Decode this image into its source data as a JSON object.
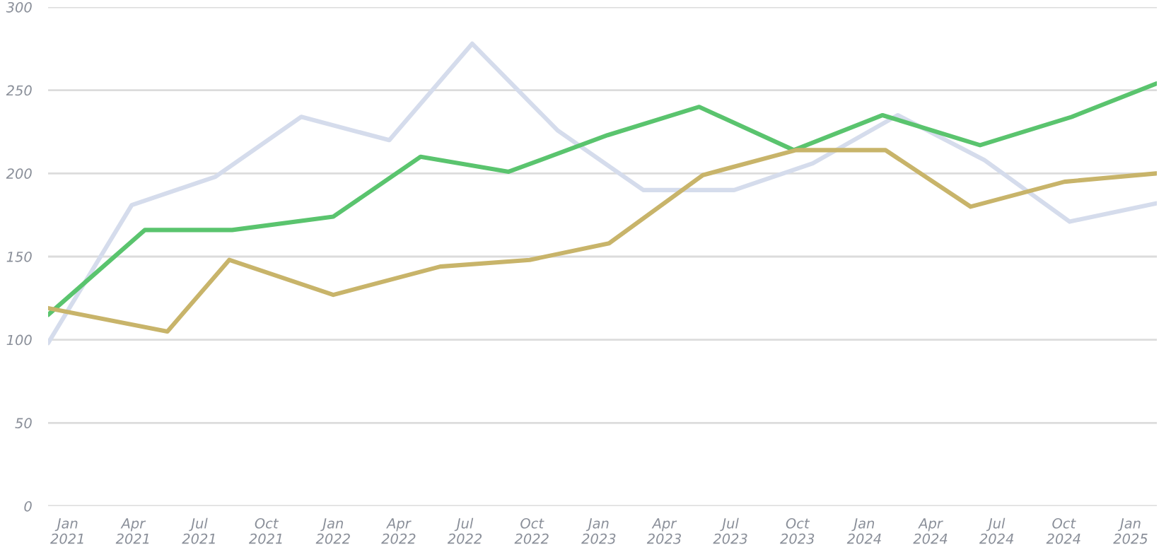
{
  "chart_data": {
    "type": "line",
    "xlim": [
      "2020-12-05",
      "2025-02-06"
    ],
    "xticks": [
      {
        "value": "2021-01-01",
        "label": "Jan\n2021"
      },
      {
        "value": "2021-04-01",
        "label": "Apr\n2021"
      },
      {
        "value": "2021-07-01",
        "label": "Jul\n2021"
      },
      {
        "value": "2021-10-01",
        "label": "Oct\n2021"
      },
      {
        "value": "2022-01-01",
        "label": "Jan\n2022"
      },
      {
        "value": "2022-04-01",
        "label": "Apr\n2022"
      },
      {
        "value": "2022-07-01",
        "label": "Jul\n2022"
      },
      {
        "value": "2022-10-01",
        "label": "Oct\n2022"
      },
      {
        "value": "2023-01-01",
        "label": "Jan\n2023"
      },
      {
        "value": "2023-04-01",
        "label": "Apr\n2023"
      },
      {
        "value": "2023-07-01",
        "label": "Jul\n2023"
      },
      {
        "value": "2023-10-01",
        "label": "Oct\n2023"
      },
      {
        "value": "2024-01-01",
        "label": "Jan\n2024"
      },
      {
        "value": "2024-04-01",
        "label": "Apr\n2024"
      },
      {
        "value": "2024-07-01",
        "label": "Jul\n2024"
      },
      {
        "value": "2024-10-01",
        "label": "Oct\n2024"
      },
      {
        "value": "2025-01-01",
        "label": "Jan\n2025"
      }
    ],
    "ylim": [
      0,
      300
    ],
    "yticks": [
      0,
      50,
      100,
      150,
      200,
      250,
      300
    ],
    "grid": "y",
    "marker": "none",
    "line_style": "solid",
    "series": [
      {
        "color": "#d5dcec",
        "x": [
          "2020-12-05",
          "2021-03-30",
          "2021-07-23",
          "2021-11-18",
          "2022-03-19",
          "2022-07-11",
          "2022-11-05",
          "2023-03-03",
          "2023-07-06",
          "2023-10-22",
          "2024-02-16",
          "2024-06-14",
          "2024-10-09",
          "2025-02-05"
        ],
        "values": [
          98,
          181,
          198,
          234,
          220,
          278,
          226,
          190,
          190,
          206,
          235,
          208,
          171,
          182
        ]
      },
      {
        "color": "#5ac46e",
        "x": [
          "2020-12-05",
          "2021-04-17",
          "2021-08-15",
          "2022-01-01",
          "2022-05-01",
          "2022-08-30",
          "2023-01-13",
          "2023-05-19",
          "2023-09-26",
          "2024-01-26",
          "2024-06-08",
          "2024-10-12",
          "2025-02-05"
        ],
        "values": [
          115,
          166,
          166,
          174,
          210,
          201,
          223,
          240,
          214,
          235,
          217,
          234,
          254
        ]
      },
      {
        "color": "#c8b46a",
        "x": [
          "2020-12-05",
          "2021-05-18",
          "2021-08-11",
          "2022-01-01",
          "2022-05-28",
          "2022-09-28",
          "2023-01-15",
          "2023-05-24",
          "2023-09-29",
          "2024-01-30",
          "2024-05-26",
          "2024-10-02",
          "2025-02-05"
        ],
        "values": [
          119,
          105,
          148,
          127,
          144,
          148,
          158,
          199,
          214,
          214,
          180,
          195,
          200
        ]
      }
    ]
  }
}
